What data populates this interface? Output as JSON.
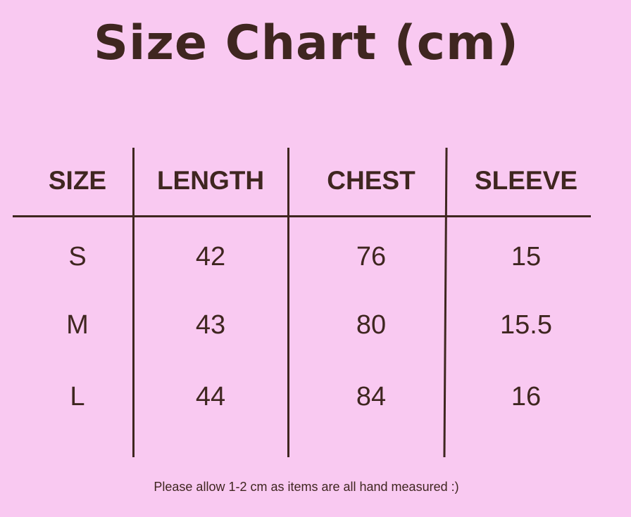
{
  "chart_data": {
    "type": "table",
    "title": "Size Chart (cm)",
    "columns": [
      "SIZE",
      "LENGTH",
      "CHEST",
      "SLEEVE"
    ],
    "rows": [
      [
        "S",
        "42",
        "76",
        "15"
      ],
      [
        "M",
        "43",
        "80",
        "15.5"
      ],
      [
        "L",
        "44",
        "84",
        "16"
      ]
    ],
    "footnote": "Please allow 1-2 cm as items are all hand measured :)",
    "colors": {
      "background": "#f9c9f1",
      "text": "#3f2620"
    }
  }
}
